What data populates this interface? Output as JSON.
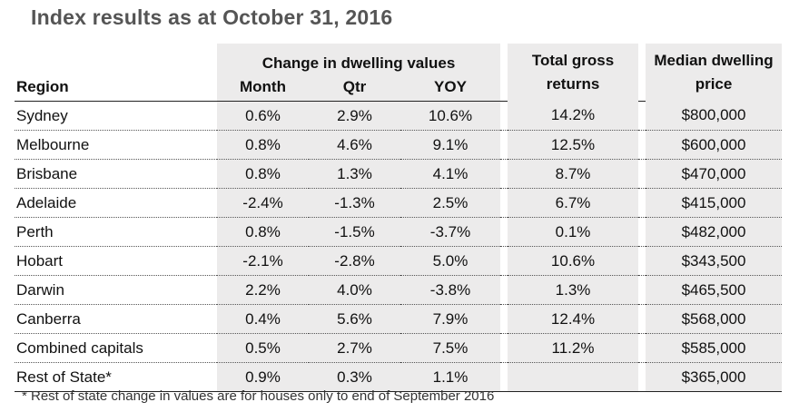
{
  "title": "Index results as at October 31, 2016",
  "header": {
    "group_label": "Change in dwelling values",
    "region": "Region",
    "month": "Month",
    "qtr": "Qtr",
    "yoy": "YOY",
    "total_gross_returns": "Total gross returns",
    "median_dwelling_price": "Median dwelling price"
  },
  "rows": [
    {
      "region": "Sydney",
      "month": "0.6%",
      "qtr": "2.9%",
      "yoy": "10.6%",
      "tgr": "14.2%",
      "price": "$800,000"
    },
    {
      "region": "Melbourne",
      "month": "0.8%",
      "qtr": "4.6%",
      "yoy": "9.1%",
      "tgr": "12.5%",
      "price": "$600,000"
    },
    {
      "region": "Brisbane",
      "month": "0.8%",
      "qtr": "1.3%",
      "yoy": "4.1%",
      "tgr": "8.7%",
      "price": "$470,000"
    },
    {
      "region": "Adelaide",
      "month": "-2.4%",
      "qtr": "-1.3%",
      "yoy": "2.5%",
      "tgr": "6.7%",
      "price": "$415,000"
    },
    {
      "region": "Perth",
      "month": "0.8%",
      "qtr": "-1.5%",
      "yoy": "-3.7%",
      "tgr": "0.1%",
      "price": "$482,000"
    },
    {
      "region": "Hobart",
      "month": "-2.1%",
      "qtr": "-2.8%",
      "yoy": "5.0%",
      "tgr": "10.6%",
      "price": "$343,500"
    },
    {
      "region": "Darwin",
      "month": "2.2%",
      "qtr": "4.0%",
      "yoy": "-3.8%",
      "tgr": "1.3%",
      "price": "$465,500"
    },
    {
      "region": "Canberra",
      "month": "0.4%",
      "qtr": "5.6%",
      "yoy": "7.9%",
      "tgr": "12.4%",
      "price": "$568,000"
    },
    {
      "region": "Combined capitals",
      "month": "0.5%",
      "qtr": "2.7%",
      "yoy": "7.5%",
      "tgr": "11.2%",
      "price": "$585,000"
    },
    {
      "region": "Rest of State*",
      "month": "0.9%",
      "qtr": "0.3%",
      "yoy": "1.1%",
      "tgr": "",
      "price": "$365,000"
    }
  ],
  "footnote": "* Rest of state change in values are for houses only to end of September 2016"
}
